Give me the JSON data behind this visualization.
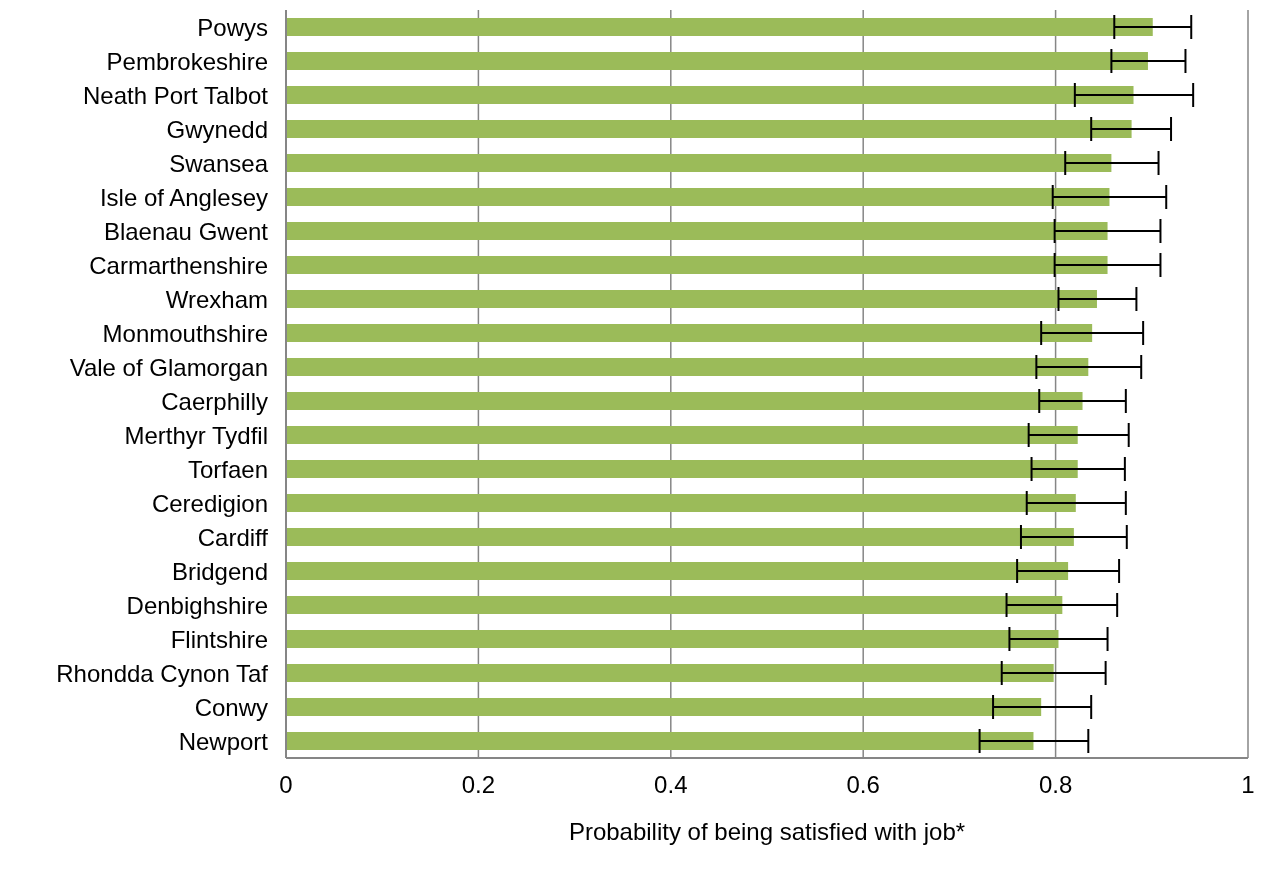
{
  "chart_data": {
    "type": "bar",
    "orientation": "horizontal",
    "xlabel": "Probability of being satisfied with job*",
    "categories": [
      "Powys",
      "Pembrokeshire",
      "Neath Port Talbot",
      "Gwynedd",
      "Swansea",
      "Isle of Anglesey",
      "Blaenau Gwent",
      "Carmarthenshire",
      "Wrexham",
      "Monmouthshire",
      "Vale of Glamorgan",
      "Caerphilly",
      "Merthyr Tydfil",
      "Torfaen",
      "Ceredigion",
      "Cardiff",
      "Bridgend",
      "Denbighshire",
      "Flintshire",
      "Rhondda Cynon Taf",
      "Conwy",
      "Newport"
    ],
    "values": [
      0.901,
      0.896,
      0.881,
      0.879,
      0.858,
      0.856,
      0.854,
      0.854,
      0.843,
      0.838,
      0.834,
      0.828,
      0.823,
      0.823,
      0.821,
      0.819,
      0.813,
      0.807,
      0.803,
      0.798,
      0.785,
      0.777
    ],
    "errors": [
      [
        0.861,
        0.941
      ],
      [
        0.858,
        0.935
      ],
      [
        0.82,
        0.943
      ],
      [
        0.837,
        0.92
      ],
      [
        0.81,
        0.907
      ],
      [
        0.797,
        0.915
      ],
      [
        0.799,
        0.909
      ],
      [
        0.799,
        0.909
      ],
      [
        0.803,
        0.884
      ],
      [
        0.785,
        0.891
      ],
      [
        0.78,
        0.889
      ],
      [
        0.783,
        0.873
      ],
      [
        0.772,
        0.876
      ],
      [
        0.775,
        0.872
      ],
      [
        0.77,
        0.873
      ],
      [
        0.764,
        0.874
      ],
      [
        0.76,
        0.866
      ],
      [
        0.749,
        0.864
      ],
      [
        0.752,
        0.854
      ],
      [
        0.744,
        0.852
      ],
      [
        0.735,
        0.837
      ],
      [
        0.721,
        0.834
      ]
    ],
    "color": "#9bbb59",
    "xlim": [
      0,
      1
    ],
    "xticks": [
      0,
      0.2,
      0.4,
      0.6,
      0.8,
      1
    ],
    "grid": "x",
    "legend": false
  }
}
